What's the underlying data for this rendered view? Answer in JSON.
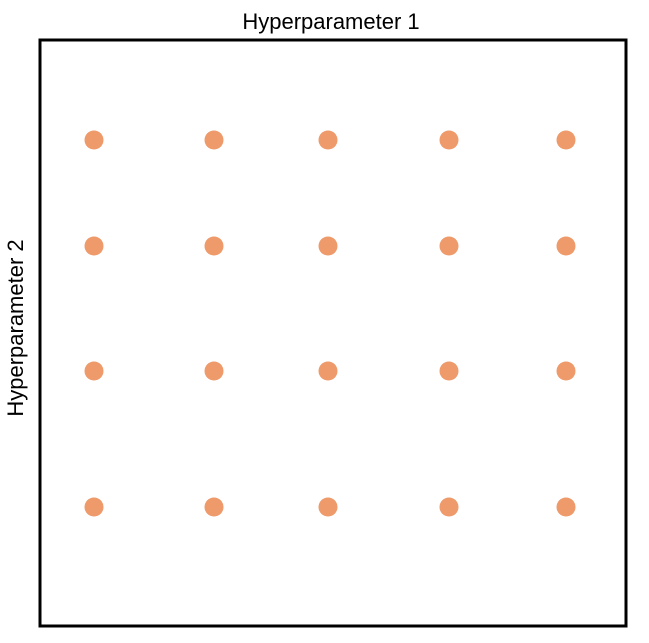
{
  "diagram": {
    "type": "grid-search",
    "x_axis_label": "Hyperparameter 1",
    "y_axis_label": "Hyperparameter 2",
    "point_color": "#EE9A6A",
    "frame_color": "#000000",
    "grid": {
      "columns": 5,
      "rows": 4
    }
  }
}
